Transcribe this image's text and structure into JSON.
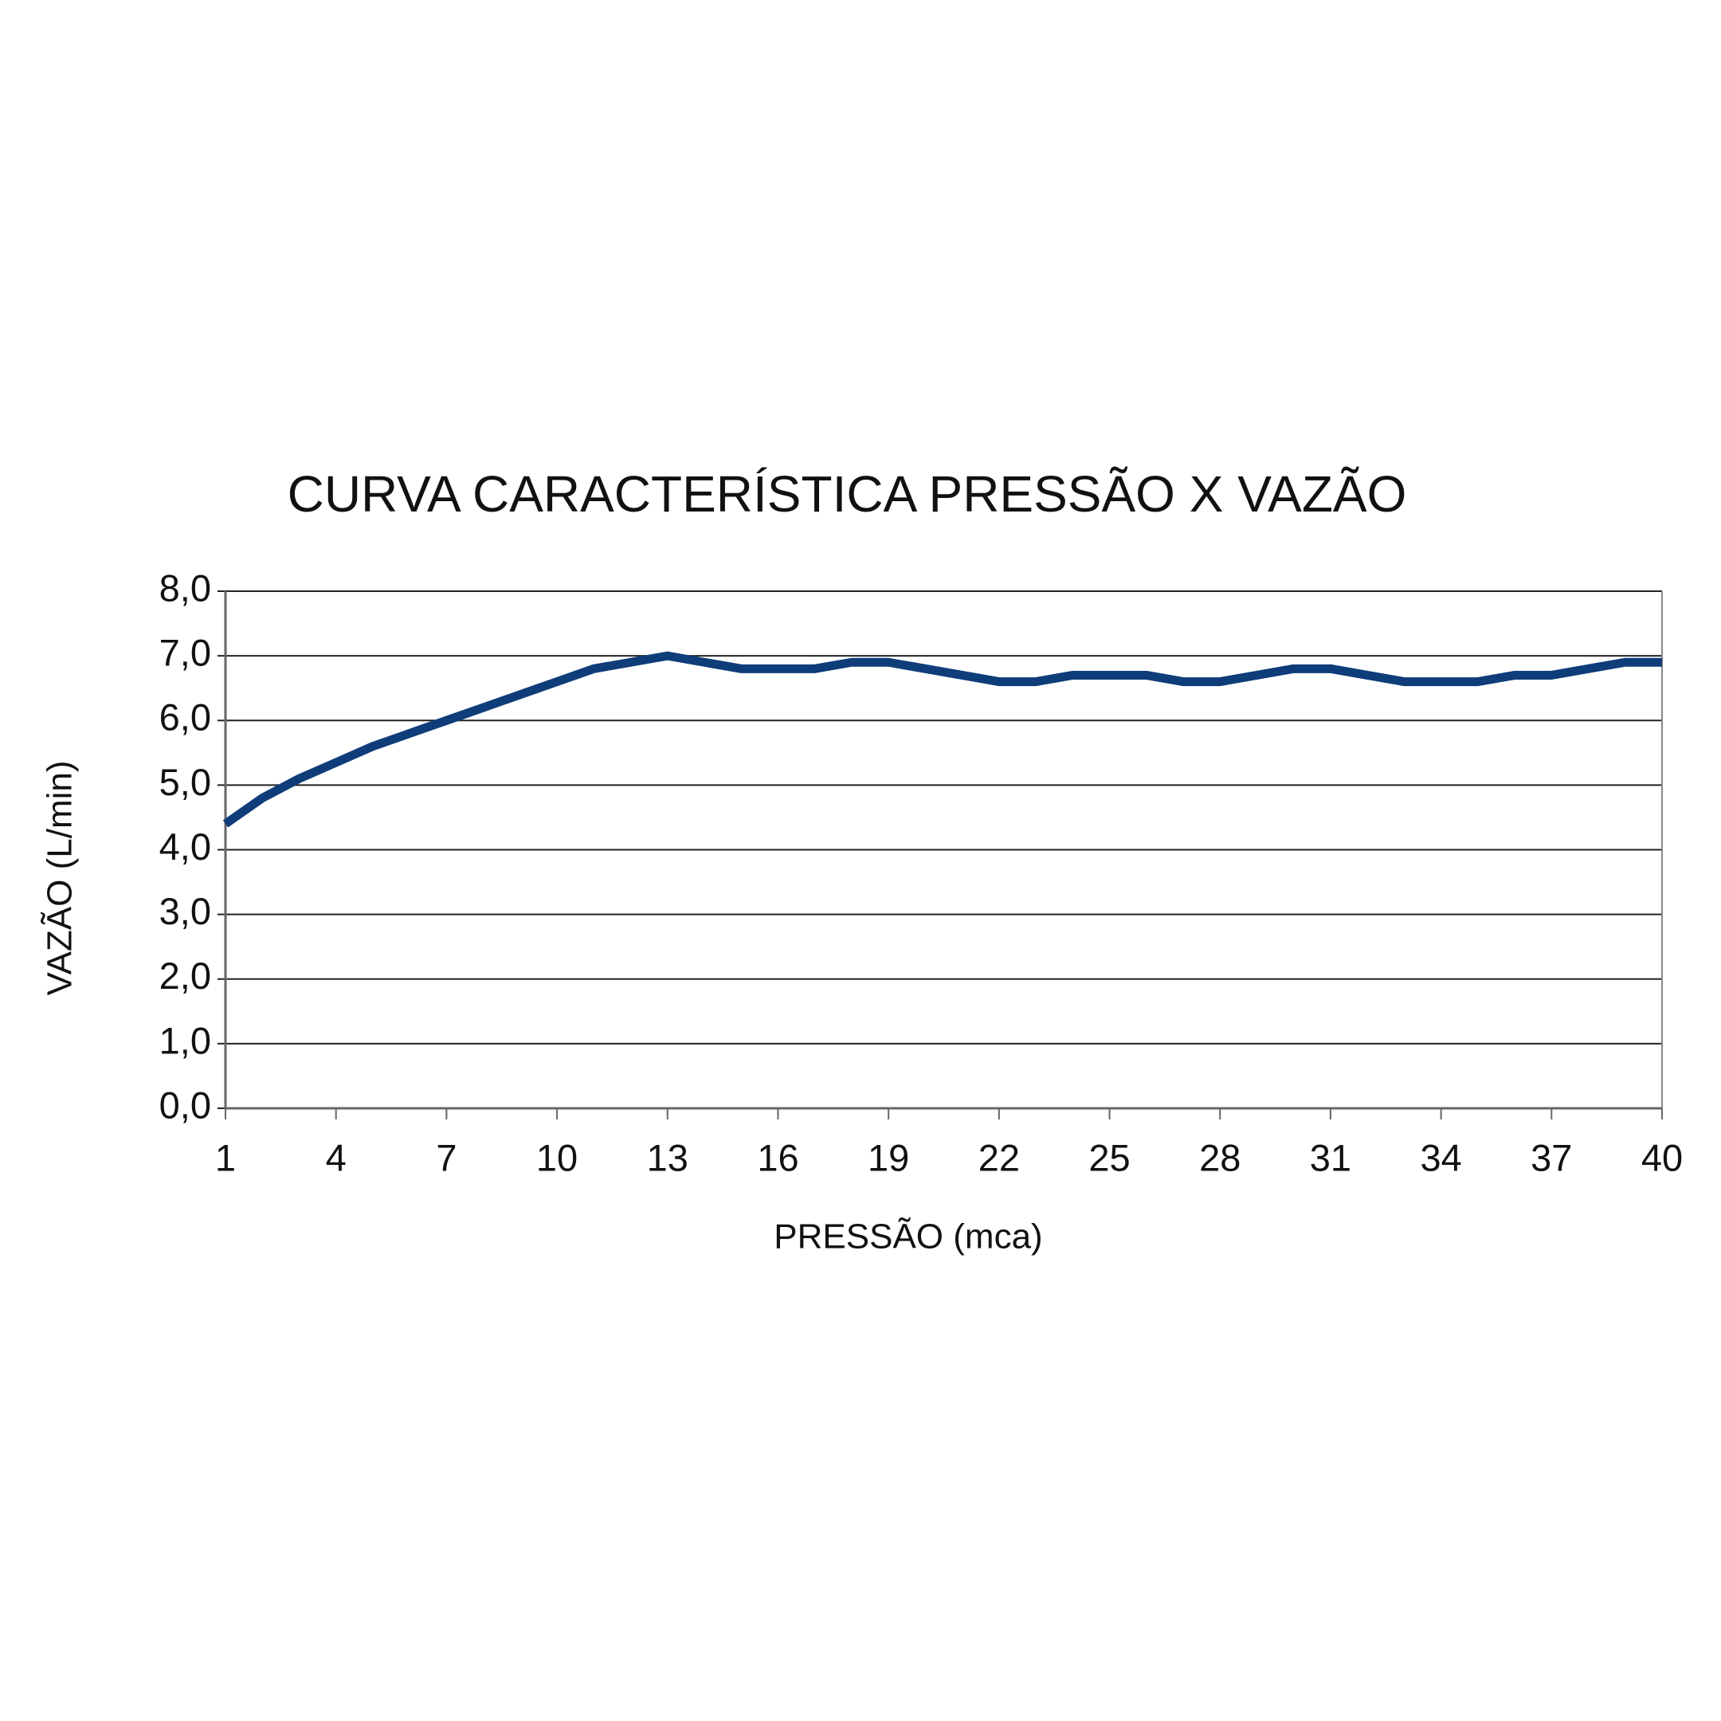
{
  "chart_data": {
    "type": "line",
    "title": "CURVA CARACTERÍSTICA PRESSÃO X VAZÃO",
    "x_label": "PRESSÃO (mca)",
    "y_label": "VAZÃO (L/min)",
    "x": [
      1,
      2,
      3,
      4,
      5,
      6,
      7,
      8,
      9,
      10,
      11,
      12,
      13,
      14,
      15,
      16,
      17,
      18,
      19,
      20,
      21,
      22,
      23,
      24,
      25,
      26,
      27,
      28,
      29,
      30,
      31,
      32,
      33,
      34,
      35,
      36,
      37,
      38,
      39,
      40
    ],
    "values": [
      4.4,
      4.8,
      5.1,
      5.35,
      5.6,
      5.8,
      6.0,
      6.2,
      6.4,
      6.6,
      6.8,
      6.9,
      7.0,
      6.9,
      6.8,
      6.8,
      6.8,
      6.9,
      6.9,
      6.8,
      6.7,
      6.6,
      6.6,
      6.7,
      6.7,
      6.7,
      6.6,
      6.6,
      6.7,
      6.8,
      6.8,
      6.7,
      6.6,
      6.6,
      6.6,
      6.7,
      6.7,
      6.8,
      6.9,
      6.9
    ],
    "color": "#0f3d7a",
    "xlim": [
      1,
      40
    ],
    "xticks": [
      1,
      4,
      7,
      10,
      13,
      16,
      19,
      22,
      25,
      28,
      31,
      34,
      37,
      40
    ],
    "ylim": [
      0,
      8
    ],
    "yticks": [
      {
        "value": 0,
        "label": "0,0"
      },
      {
        "value": 1,
        "label": "1,0"
      },
      {
        "value": 2,
        "label": "2,0"
      },
      {
        "value": 3,
        "label": "3,0"
      },
      {
        "value": 4,
        "label": "4,0"
      },
      {
        "value": 5,
        "label": "5,0"
      },
      {
        "value": 6,
        "label": "6,0"
      },
      {
        "value": 7,
        "label": "7,0"
      },
      {
        "value": 8,
        "label": "8,0"
      }
    ],
    "grid": true
  }
}
